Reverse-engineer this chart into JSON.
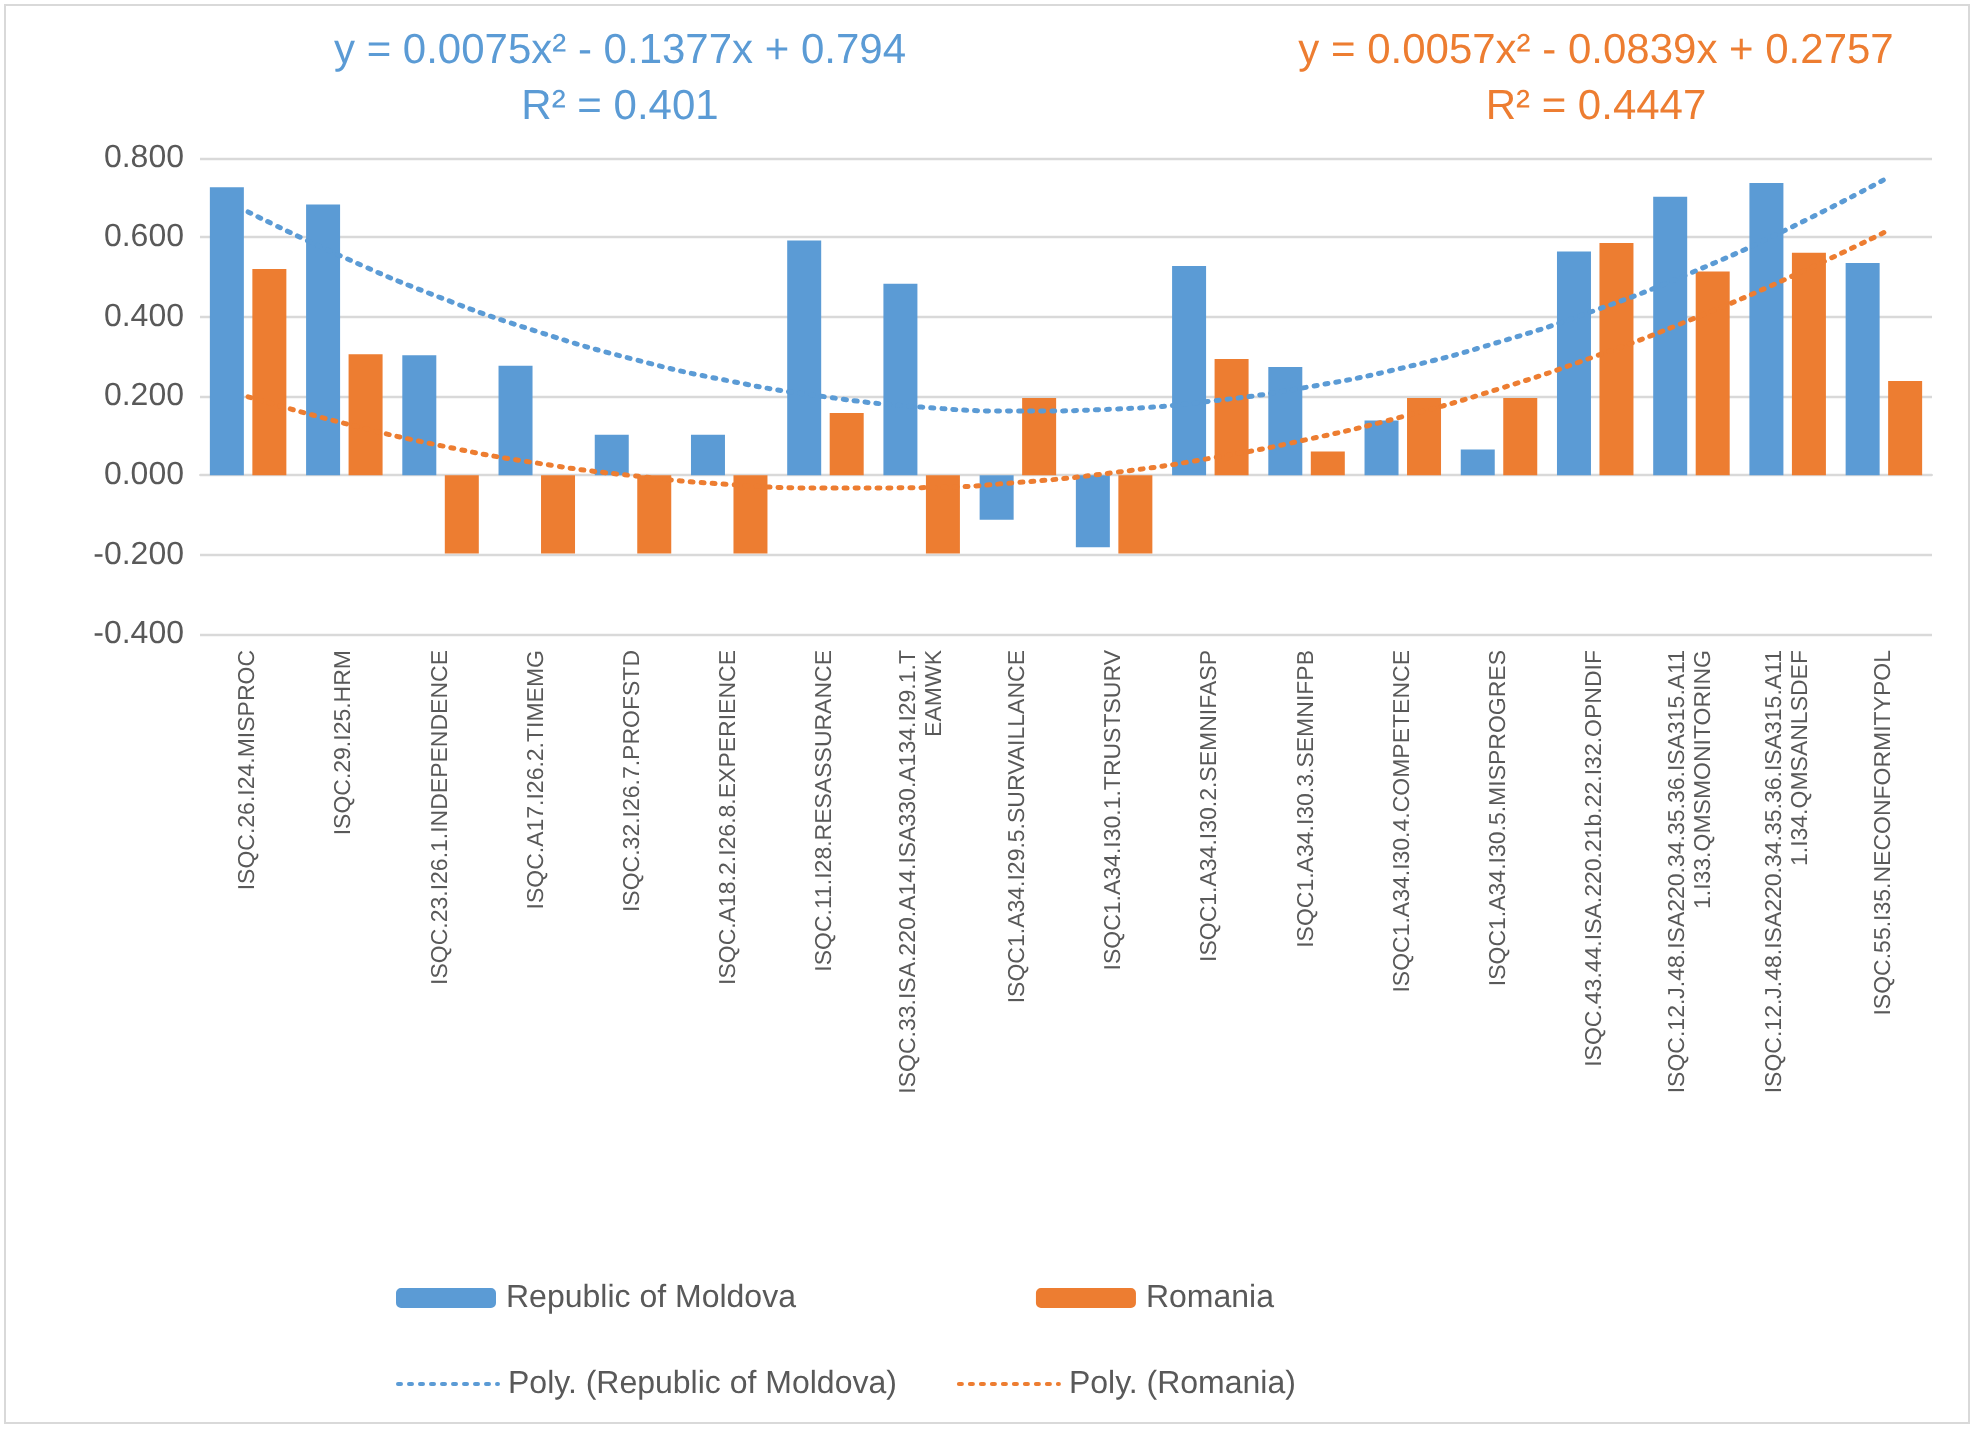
{
  "chart_data": {
    "type": "bar",
    "categories": [
      "ISQC.26.I24.MISPROC",
      "ISQC.29.I25.HRM",
      "ISQC.23.I26.1.INDEPENDENCE",
      "ISQC.A17.I26.2.TIMEMG",
      "ISQC.32.I26.7.PROFSTD",
      "ISQC.A18.2.I26.8.EXPERIENCE",
      "ISQC.11.I28.RESASSURANCE",
      "ISQC.33.ISA.220.A14.ISA330.A134.I29.1.TEAMWK",
      "ISQC1.A34.I29.5.SURVAILLANCE",
      "ISQC1.A34.I30.1.TRUSTSURV",
      "ISQC1.A34.I30.2.SEMNIFASP",
      "ISQC1.A34.I30.3.SEMNIFPB",
      "ISQC1.A34.I30.4.COMPETENCE",
      "ISQC1.A34.I30.5.MISPROGRES",
      "ISQC.43.44.ISA.220.21b.22.I32.OPNDIF",
      "ISQC.12.J.48.ISA220.34.35.36.ISA315.A111.I33.QMSMONITORING",
      "ISQC.12.J.48.ISA220.34.35.36.ISA315.A111.I34.QMSANLSDEF",
      "ISQC.55.I35.NECONFORMITYPOL"
    ],
    "series": [
      {
        "name": "Republic of Moldova",
        "color": "#5b9bd5",
        "values": [
          0.726,
          0.683,
          0.303,
          0.276,
          0.102,
          0.102,
          0.592,
          0.483,
          -0.112,
          -0.181,
          0.528,
          0.273,
          0.138,
          0.065,
          0.564,
          0.702,
          0.737,
          0.535
        ]
      },
      {
        "name": "Romania",
        "color": "#ed7d31",
        "values": [
          0.52,
          0.305,
          -0.197,
          -0.197,
          -0.197,
          -0.197,
          0.157,
          -0.197,
          0.195,
          -0.197,
          0.293,
          0.06,
          0.195,
          0.195,
          0.586,
          0.514,
          0.561,
          0.238
        ]
      },
      {
        "name": "Poly. (Republic of Moldova)",
        "type": "line",
        "color": "#5b9bd5",
        "line_style": "dotted",
        "marker": "none",
        "values": [
          0.664,
          0.549,
          0.448,
          0.363,
          0.293,
          0.238,
          0.198,
          0.172,
          0.162,
          0.167,
          0.187,
          0.222,
          0.271,
          0.336,
          0.416,
          0.511,
          0.621,
          0.745
        ]
      },
      {
        "name": "Poly. (Romania)",
        "type": "line",
        "color": "#ed7d31",
        "line_style": "dotted",
        "marker": "none",
        "values": [
          0.198,
          0.131,
          0.075,
          0.031,
          -0.001,
          -0.023,
          -0.032,
          -0.031,
          -0.018,
          0.007,
          0.043,
          0.09,
          0.148,
          0.218,
          0.3,
          0.393,
          0.497,
          0.612
        ]
      }
    ],
    "ylim": [
      -0.4,
      0.8
    ],
    "yticks": [
      {
        "value": -0.4,
        "label": "-0.400"
      },
      {
        "value": -0.2,
        "label": "-0.200"
      },
      {
        "value": 0,
        "label": "0.000"
      },
      {
        "value": 0.2,
        "label": "0.200"
      },
      {
        "value": 0.4,
        "label": "0.400"
      },
      {
        "value": 0.6,
        "label": "0.600"
      },
      {
        "value": 0.8,
        "label": "0.800"
      }
    ],
    "annotations": [
      "y = 0.0075x² - 0.1377x + 0.794\nR² = 0.401",
      "y = 0.0057x² - 0.0839x + 0.2757\nR² = 0.4447"
    ],
    "grid": "y",
    "legend": "bottom"
  }
}
